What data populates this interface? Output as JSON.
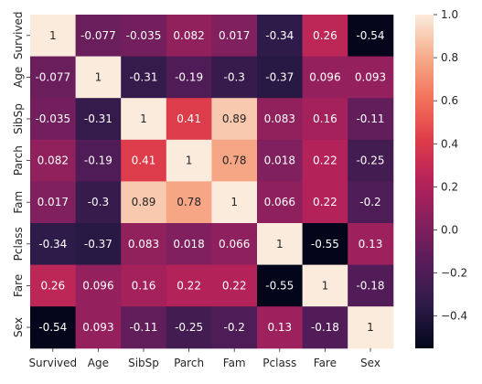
{
  "chart_data": {
    "type": "heatmap",
    "title": "",
    "xlabel": "",
    "ylabel": "",
    "x_categories": [
      "Survived",
      "Age",
      "SibSp",
      "Parch",
      "Fam",
      "Pclass",
      "Fare",
      "Sex"
    ],
    "y_categories": [
      "Survived",
      "Age",
      "SibSp",
      "Parch",
      "Fam",
      "Pclass",
      "Fare",
      "Sex"
    ],
    "values": [
      [
        1,
        -0.077,
        -0.035,
        0.082,
        0.017,
        -0.34,
        0.26,
        -0.54
      ],
      [
        -0.077,
        1,
        -0.31,
        -0.19,
        -0.3,
        -0.37,
        0.096,
        0.093
      ],
      [
        -0.035,
        -0.31,
        1,
        0.41,
        0.89,
        0.083,
        0.16,
        -0.11
      ],
      [
        0.082,
        -0.19,
        0.41,
        1,
        0.78,
        0.018,
        0.22,
        -0.25
      ],
      [
        0.017,
        -0.3,
        0.89,
        0.78,
        1,
        0.066,
        0.22,
        -0.2
      ],
      [
        -0.34,
        -0.37,
        0.083,
        0.018,
        0.066,
        1,
        -0.55,
        0.13
      ],
      [
        0.26,
        0.096,
        0.16,
        0.22,
        0.22,
        -0.55,
        1,
        -0.18
      ],
      [
        -0.54,
        0.093,
        -0.11,
        -0.25,
        -0.2,
        0.13,
        -0.18,
        1
      ]
    ],
    "labels": [
      [
        "1",
        "-0.077",
        "-0.035",
        "0.082",
        "0.017",
        "-0.34",
        "0.26",
        "-0.54"
      ],
      [
        "-0.077",
        "1",
        "-0.31",
        "-0.19",
        "-0.3",
        "-0.37",
        "0.096",
        "0.093"
      ],
      [
        "-0.035",
        "-0.31",
        "1",
        "0.41",
        "0.89",
        "0.083",
        "0.16",
        "-0.11"
      ],
      [
        "0.082",
        "-0.19",
        "0.41",
        "1",
        "0.78",
        "0.018",
        "0.22",
        "-0.25"
      ],
      [
        "0.017",
        "-0.3",
        "0.89",
        "0.78",
        "1",
        "0.066",
        "0.22",
        "-0.2"
      ],
      [
        "-0.34",
        "-0.37",
        "0.083",
        "0.018",
        "0.066",
        "1",
        "-0.55",
        "0.13"
      ],
      [
        "0.26",
        "0.096",
        "0.16",
        "0.22",
        "0.22",
        "-0.55",
        "1",
        "-0.18"
      ],
      [
        "-0.54",
        "0.093",
        "-0.11",
        "-0.25",
        "-0.2",
        "0.13",
        "-0.18",
        "1"
      ]
    ],
    "colormap": "rocket",
    "vmin": -0.55,
    "vmax": 1,
    "colorbar_ticks": [
      1.0,
      0.8,
      0.6,
      0.4,
      0.2,
      0.0,
      -0.2,
      -0.4
    ],
    "colorbar_tick_labels": [
      "1.0",
      "0.8",
      "0.6",
      "0.4",
      "0.2",
      "0.0",
      "−0.2",
      "−0.4"
    ],
    "colorbar_position": "right",
    "grid": false
  }
}
